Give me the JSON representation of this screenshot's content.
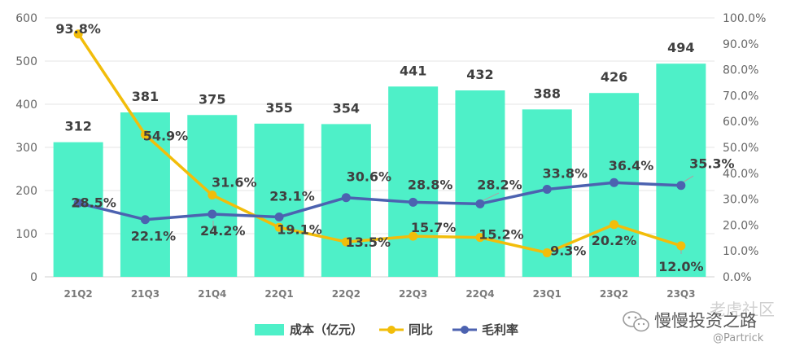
{
  "chart_data": {
    "type": "bar+line",
    "categories": [
      "21Q2",
      "21Q3",
      "21Q4",
      "22Q1",
      "22Q2",
      "22Q3",
      "22Q4",
      "23Q1",
      "23Q2",
      "23Q3"
    ],
    "series": [
      {
        "name": "成本（亿元）",
        "type": "bar",
        "axis": "left",
        "color": "#4ef0c8",
        "values": [
          312,
          381,
          375,
          355,
          354,
          441,
          432,
          388,
          426,
          494
        ],
        "labels": [
          "312",
          "381",
          "375",
          "355",
          "354",
          "441",
          "432",
          "388",
          "426",
          "494"
        ]
      },
      {
        "name": "同比",
        "type": "line",
        "axis": "right",
        "color": "#f2bd0a",
        "values": [
          93.8,
          54.9,
          31.6,
          19.1,
          13.5,
          15.7,
          15.2,
          9.3,
          20.2,
          12.0
        ],
        "labels": [
          "93.8%",
          "54.9%",
          "31.6%",
          "19.1%",
          "13.5%",
          "15.7%",
          "15.2%",
          "9.3%",
          "20.2%",
          "12.0%"
        ]
      },
      {
        "name": "毛利率",
        "type": "line",
        "axis": "right",
        "color": "#4c62b0",
        "values": [
          28.5,
          22.1,
          24.2,
          23.1,
          30.6,
          28.8,
          28.2,
          33.8,
          36.4,
          35.3
        ],
        "labels": [
          "28.5%",
          "22.1%",
          "24.2%",
          "23.1%",
          "30.6%",
          "28.8%",
          "28.2%",
          "33.8%",
          "36.4%",
          "35.3%"
        ]
      }
    ],
    "left_axis": {
      "ylim": [
        0,
        600
      ],
      "ticks": [
        "0",
        "100",
        "200",
        "300",
        "400",
        "500",
        "600"
      ]
    },
    "right_axis": {
      "ylim": [
        0,
        100
      ],
      "ticks": [
        "0.0%",
        "10.0%",
        "20.0%",
        "30.0%",
        "40.0%",
        "50.0%",
        "60.0%",
        "70.0%",
        "80.0%",
        "90.0%",
        "100.0%"
      ]
    },
    "grid": true,
    "legend": "bottom-center"
  },
  "watermark": {
    "faint_text": "老虎社区",
    "main_text": "慢慢投资之路",
    "handle": "@Partrick",
    "icon": "wechat-icon"
  }
}
